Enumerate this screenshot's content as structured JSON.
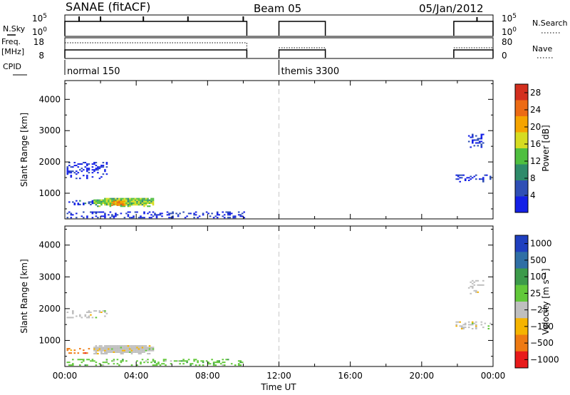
{
  "header": {
    "station": "SANAE (fitACF)",
    "beam": "Beam 05",
    "date": "05/Jan/2012"
  },
  "top_panels": {
    "nsky_label": "N.Sky",
    "nsearch_label": "N.Search",
    "freq_label": "Freq.",
    "freq_unit": "[MHz]",
    "nave_label": "Nave",
    "cpid_label": "CPID",
    "noise_ticks_left": [
      "10^5",
      "10^0"
    ],
    "noise_ticks_right": [
      "10^5",
      "10^0"
    ],
    "freq_ticks": [
      "18",
      "8"
    ],
    "nave_ticks": [
      "80",
      "0"
    ],
    "cpid_segments": [
      {
        "name": "normal 150",
        "start_hr": 0.0
      },
      {
        "name": "themis 3300",
        "start_hr": 12.0
      }
    ],
    "operating_intervals_hr": [
      [
        0.0,
        10.2
      ],
      [
        12.0,
        14.6
      ],
      [
        21.8,
        24.0
      ]
    ]
  },
  "chart_data": [
    {
      "type": "heatmap",
      "panel": "power",
      "ylabel": "Slant Range [km]",
      "xlabel": "Time UT",
      "x_ticks": [
        "00:00",
        "04:00",
        "08:00",
        "12:00",
        "16:00",
        "20:00",
        "00:00"
      ],
      "x_range_hr": [
        0,
        24
      ],
      "y_range_km": [
        180,
        4600
      ],
      "y_ticks": [
        1000,
        2000,
        3000,
        4000
      ],
      "colorbar_label": "Power [dB]",
      "colorbar_ticks": [
        "4",
        "8",
        "12",
        "16",
        "20",
        "24",
        "28"
      ],
      "colorbar_range": [
        0,
        30
      ],
      "colors": [
        "#1420e6",
        "#2f4fb5",
        "#2e8b6a",
        "#4fbf3f",
        "#d6dc21",
        "#f5a400",
        "#ec6b14",
        "#d32f1e"
      ],
      "echo_regions": [
        {
          "t0": 1.6,
          "t1": 5.0,
          "r0": 560,
          "r1": 850,
          "level": 14
        },
        {
          "t0": 2.6,
          "t1": 3.4,
          "r0": 600,
          "r1": 760,
          "level": 22
        },
        {
          "t0": 0.1,
          "t1": 1.6,
          "r0": 620,
          "r1": 780,
          "level": 4
        },
        {
          "t0": 0.1,
          "t1": 2.4,
          "r0": 1450,
          "r1": 2000,
          "level": 2
        },
        {
          "t0": 21.9,
          "t1": 23.9,
          "r0": 1350,
          "r1": 1600,
          "level": 3
        },
        {
          "t0": 22.6,
          "t1": 23.5,
          "r0": 2450,
          "r1": 2900,
          "level": 2
        },
        {
          "t0": 0.1,
          "t1": 10.1,
          "r0": 200,
          "r1": 420,
          "level": 3
        }
      ]
    },
    {
      "type": "heatmap",
      "panel": "velocity",
      "ylabel": "Slant Range [km]",
      "xlabel": "Time UT",
      "x_ticks": [
        "00:00",
        "04:00",
        "08:00",
        "12:00",
        "16:00",
        "20:00",
        "00:00"
      ],
      "x_range_hr": [
        0,
        24
      ],
      "y_range_km": [
        180,
        4600
      ],
      "y_ticks": [
        1000,
        2000,
        3000,
        4000
      ],
      "colorbar_label": "Velocity [m s^-1]",
      "colorbar_ticks": [
        "1000",
        "500",
        "100",
        "25",
        "-25",
        "-100",
        "-500",
        "-1000"
      ],
      "colors": [
        "#1f3fbf",
        "#2f6fa5",
        "#3c9a4a",
        "#62c83a",
        "#bfbfbf",
        "#f5b400",
        "#ee7a12",
        "#e81a1a"
      ],
      "echo_regions": [
        {
          "t0": 1.6,
          "t1": 5.0,
          "r0": 560,
          "r1": 850,
          "class": 4
        },
        {
          "t0": 0.1,
          "t1": 1.4,
          "r0": 580,
          "r1": 760,
          "class": 6
        },
        {
          "t0": 0.1,
          "t1": 2.4,
          "r0": 1700,
          "r1": 1950,
          "class": 4
        },
        {
          "t0": 21.9,
          "t1": 23.9,
          "r0": 1350,
          "r1": 1600,
          "class": 4
        },
        {
          "t0": 22.6,
          "t1": 23.5,
          "r0": 2450,
          "r1": 2900,
          "class": 4
        },
        {
          "t0": 0.1,
          "t1": 10.1,
          "r0": 200,
          "r1": 420,
          "class": 3
        }
      ]
    }
  ]
}
